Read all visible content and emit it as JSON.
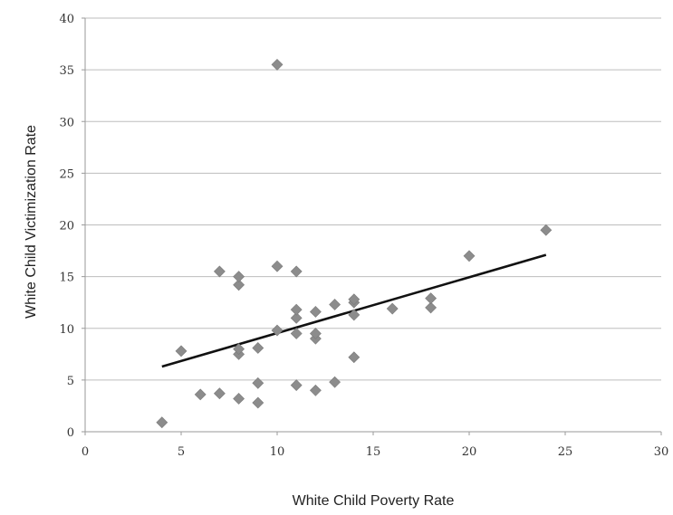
{
  "chart_data": {
    "type": "scatter",
    "title": "",
    "xlabel": "White Child Poverty Rate",
    "ylabel": "White Child Victimization Rate",
    "xlim": [
      0,
      30
    ],
    "ylim": [
      0,
      40
    ],
    "x_ticks": [
      0,
      5,
      10,
      15,
      20,
      25,
      30
    ],
    "y_ticks": [
      0,
      5,
      10,
      15,
      20,
      25,
      30,
      35,
      40
    ],
    "grid": "horizontal",
    "marker_color": "#8c8c8c",
    "trendline_color": "#111111",
    "points": [
      {
        "x": 4,
        "y": 0.9
      },
      {
        "x": 5,
        "y": 7.8
      },
      {
        "x": 6,
        "y": 3.6
      },
      {
        "x": 7,
        "y": 3.7
      },
      {
        "x": 7,
        "y": 15.5
      },
      {
        "x": 8,
        "y": 3.2
      },
      {
        "x": 8,
        "y": 7.5
      },
      {
        "x": 8,
        "y": 8.0
      },
      {
        "x": 8,
        "y": 14.2
      },
      {
        "x": 8,
        "y": 15.0
      },
      {
        "x": 9,
        "y": 2.8
      },
      {
        "x": 9,
        "y": 4.7
      },
      {
        "x": 9,
        "y": 8.1
      },
      {
        "x": 10,
        "y": 9.8
      },
      {
        "x": 10,
        "y": 16.0
      },
      {
        "x": 10,
        "y": 35.5
      },
      {
        "x": 11,
        "y": 4.5
      },
      {
        "x": 11,
        "y": 9.5
      },
      {
        "x": 11,
        "y": 11.0
      },
      {
        "x": 11,
        "y": 11.8
      },
      {
        "x": 11,
        "y": 15.5
      },
      {
        "x": 12,
        "y": 4.0
      },
      {
        "x": 12,
        "y": 9.0
      },
      {
        "x": 12,
        "y": 9.5
      },
      {
        "x": 12,
        "y": 11.6
      },
      {
        "x": 13,
        "y": 4.8
      },
      {
        "x": 13,
        "y": 12.3
      },
      {
        "x": 14,
        "y": 7.2
      },
      {
        "x": 14,
        "y": 11.3
      },
      {
        "x": 14,
        "y": 12.5
      },
      {
        "x": 14,
        "y": 12.8
      },
      {
        "x": 16,
        "y": 11.9
      },
      {
        "x": 18,
        "y": 12.0
      },
      {
        "x": 18,
        "y": 12.9
      },
      {
        "x": 20,
        "y": 17.0
      },
      {
        "x": 24,
        "y": 19.5
      }
    ],
    "trendline": {
      "x": [
        4,
        24
      ],
      "y": [
        6.3,
        17.1
      ]
    }
  }
}
